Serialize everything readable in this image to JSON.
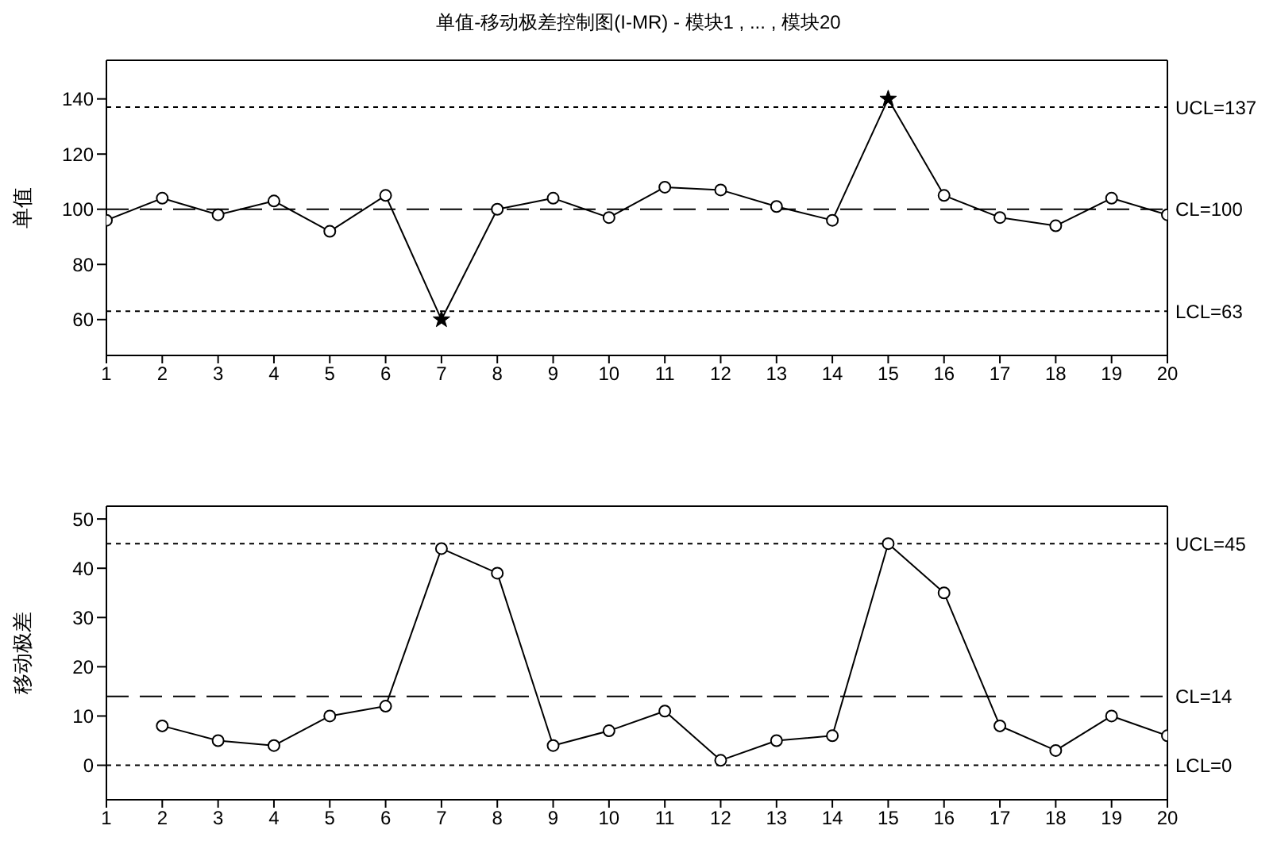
{
  "chart_data": [
    {
      "type": "line",
      "title": "单值-移动极差控制图(I-MR) - 模块1 , ... , 模块20",
      "ylabel": "单值",
      "x": [
        1,
        2,
        3,
        4,
        5,
        6,
        7,
        8,
        9,
        10,
        11,
        12,
        13,
        14,
        15,
        16,
        17,
        18,
        19,
        20
      ],
      "xlim": [
        1,
        20
      ],
      "xticks": [
        1,
        2,
        3,
        4,
        5,
        6,
        7,
        8,
        9,
        10,
        11,
        12,
        13,
        14,
        15,
        16,
        17,
        18,
        19,
        20
      ],
      "ylim": [
        47,
        154
      ],
      "yticks": [
        60,
        80,
        100,
        120,
        140
      ],
      "grid": false,
      "legend": false,
      "marker": "circle",
      "series": [
        {
          "color": "#000000",
          "values": [
            96,
            104,
            98,
            103,
            92,
            105,
            60,
            100,
            104,
            97,
            108,
            107,
            101,
            96,
            140,
            105,
            97,
            94,
            104,
            98
          ]
        },
        {
          "type": "scatter",
          "marker": "star",
          "color": "#000000",
          "x": [
            7,
            15
          ],
          "values": [
            60,
            140
          ]
        }
      ],
      "ref_lines": [
        {
          "axis": "y",
          "value": 137,
          "label": "UCL=137",
          "line_style": "dotted",
          "color": "#000000"
        },
        {
          "axis": "y",
          "value": 100,
          "label": "CL=100",
          "line_style": "dashed",
          "color": "#000000"
        },
        {
          "axis": "y",
          "value": 63,
          "label": "LCL=63",
          "line_style": "dotted",
          "color": "#000000"
        }
      ]
    },
    {
      "type": "line",
      "ylabel": "移动极差",
      "x": [
        2,
        3,
        4,
        5,
        6,
        7,
        8,
        9,
        10,
        11,
        12,
        13,
        14,
        15,
        16,
        17,
        18,
        19,
        20
      ],
      "xlim": [
        1,
        20
      ],
      "xticks": [
        1,
        2,
        3,
        4,
        5,
        6,
        7,
        8,
        9,
        10,
        11,
        12,
        13,
        14,
        15,
        16,
        17,
        18,
        19,
        20
      ],
      "ylim": [
        -7,
        52.6
      ],
      "yticks": [
        0,
        10,
        20,
        30,
        40,
        50
      ],
      "grid": false,
      "legend": false,
      "marker": "circle",
      "series": [
        {
          "color": "#000000",
          "values": [
            8,
            5,
            4,
            10,
            12,
            44,
            39,
            4,
            7,
            11,
            1,
            5,
            6,
            45,
            35,
            8,
            3,
            10,
            6
          ]
        }
      ],
      "ref_lines": [
        {
          "axis": "y",
          "value": 45,
          "label": "UCL=45",
          "line_style": "dotted",
          "color": "#000000"
        },
        {
          "axis": "y",
          "value": 14,
          "label": "CL=14",
          "line_style": "dashed",
          "color": "#000000"
        },
        {
          "axis": "y",
          "value": 0,
          "label": "LCL=0",
          "line_style": "dotted",
          "color": "#000000"
        }
      ]
    }
  ]
}
